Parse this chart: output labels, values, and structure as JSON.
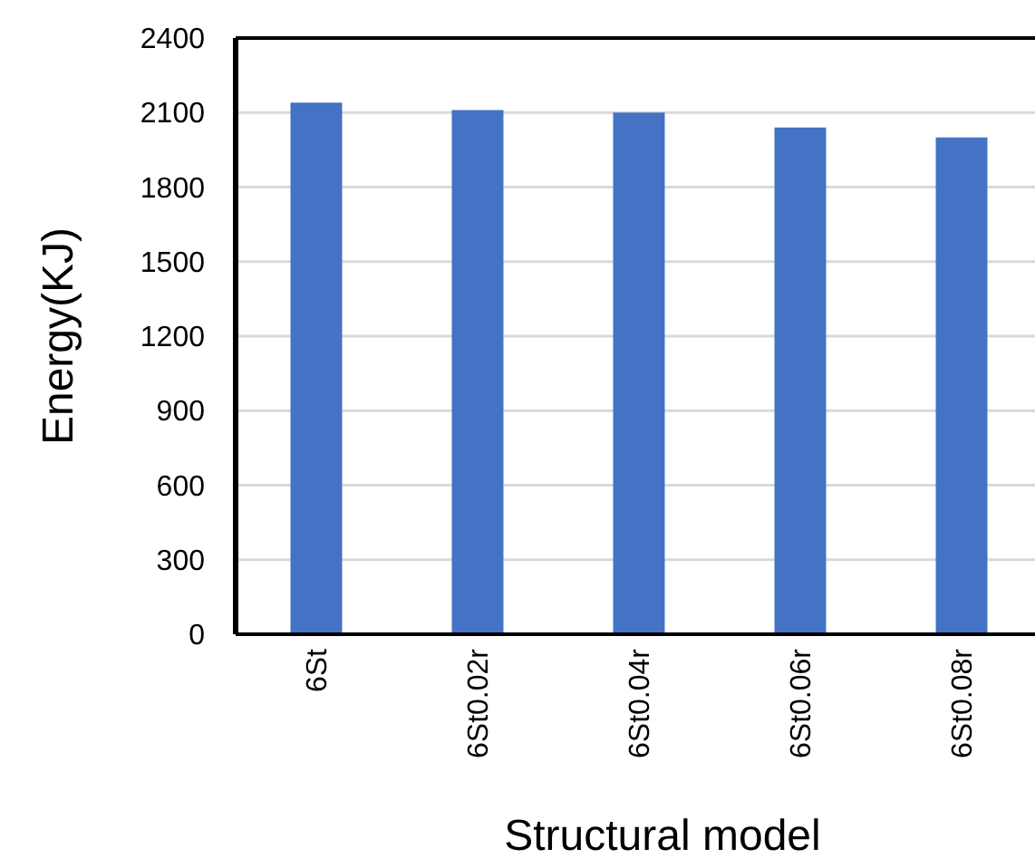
{
  "chart_data": {
    "type": "bar",
    "xlabel": "Structural model",
    "ylabel": "Energy(KJ)",
    "categories": [
      "6St",
      "6St0.02r",
      "6St0.04r",
      "6St0.06r",
      "6St0.08r"
    ],
    "values": [
      2140,
      2110,
      2100,
      2040,
      2000
    ],
    "color": "#4472c4",
    "ylim": [
      0,
      2400
    ],
    "yticks": [
      0,
      300,
      600,
      900,
      1200,
      1500,
      1800,
      2100,
      2400
    ],
    "grid": "y"
  }
}
